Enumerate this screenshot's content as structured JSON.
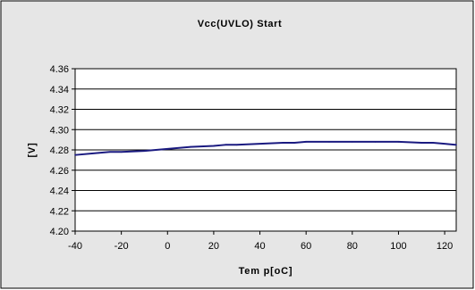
{
  "chart_data": {
    "type": "line",
    "title": "Vcc(UVLO) Start",
    "xlabel": "Tem p[oC]",
    "ylabel": "[V]",
    "xlim": [
      -40,
      125
    ],
    "ylim": [
      4.2,
      4.36
    ],
    "x_ticks": [
      "-40",
      "-20",
      "0",
      "20",
      "40",
      "60",
      "80",
      "100",
      "120"
    ],
    "y_ticks": [
      "4.20",
      "4.22",
      "4.24",
      "4.26",
      "4.28",
      "4.30",
      "4.32",
      "4.34",
      "4.36"
    ],
    "grid": true,
    "legend": "none",
    "colors": {
      "line": "#1a1a80",
      "plot_bg": "#ffffff",
      "outer_bg": "#e6e6e6",
      "grid": "#000000",
      "frame": "#000000"
    },
    "series": [
      {
        "x": [
          -40,
          -30,
          -25,
          -20,
          -10,
          0,
          10,
          20,
          25,
          30,
          40,
          50,
          55,
          60,
          70,
          80,
          90,
          100,
          110,
          115,
          120,
          125
        ],
        "values": [
          4.275,
          4.277,
          4.278,
          4.278,
          4.279,
          4.281,
          4.283,
          4.284,
          4.285,
          4.285,
          4.286,
          4.287,
          4.287,
          4.288,
          4.288,
          4.288,
          4.288,
          4.288,
          4.287,
          4.287,
          4.286,
          4.285
        ]
      }
    ]
  }
}
